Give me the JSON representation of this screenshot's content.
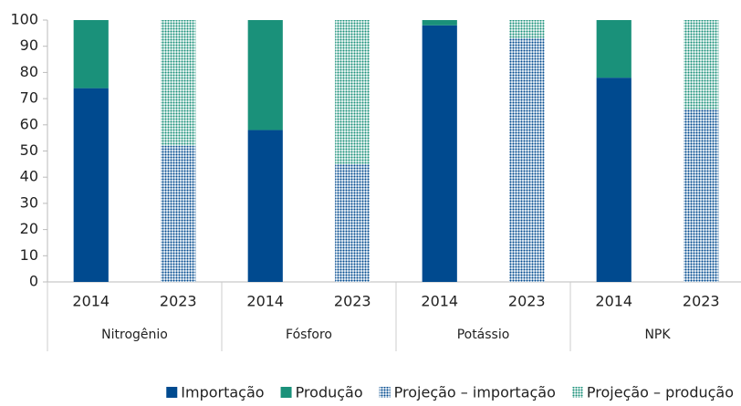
{
  "chart_data": {
    "type": "stacked_bar",
    "categories": [
      "2014",
      "2023",
      "2014",
      "2023",
      "2014",
      "2023",
      "2014",
      "2023"
    ],
    "groups": [
      "Nitrogênio",
      "Fósforo",
      "Potássio",
      "NPK"
    ],
    "series": [
      {
        "name": "Importação",
        "color": "#004a8f",
        "pattern": "solid",
        "values": [
          74,
          null,
          58,
          null,
          98,
          null,
          78,
          null
        ]
      },
      {
        "name": "Produção",
        "color": "#1a917a",
        "pattern": "solid",
        "values": [
          26,
          null,
          42,
          null,
          2,
          null,
          22,
          null
        ]
      },
      {
        "name": "Projeção – importação",
        "color": "#004a8f",
        "pattern": "dots",
        "values": [
          null,
          52,
          null,
          45,
          null,
          93,
          null,
          66
        ]
      },
      {
        "name": "Projeção – produção",
        "color": "#1a917a",
        "pattern": "dots",
        "values": [
          null,
          48,
          null,
          55,
          null,
          7,
          null,
          34
        ]
      }
    ],
    "ylim": [
      0,
      100
    ],
    "yticks": [
      0,
      10,
      20,
      30,
      40,
      50,
      60,
      70,
      80,
      90,
      100
    ],
    "grid": false,
    "legend": "bottom"
  }
}
